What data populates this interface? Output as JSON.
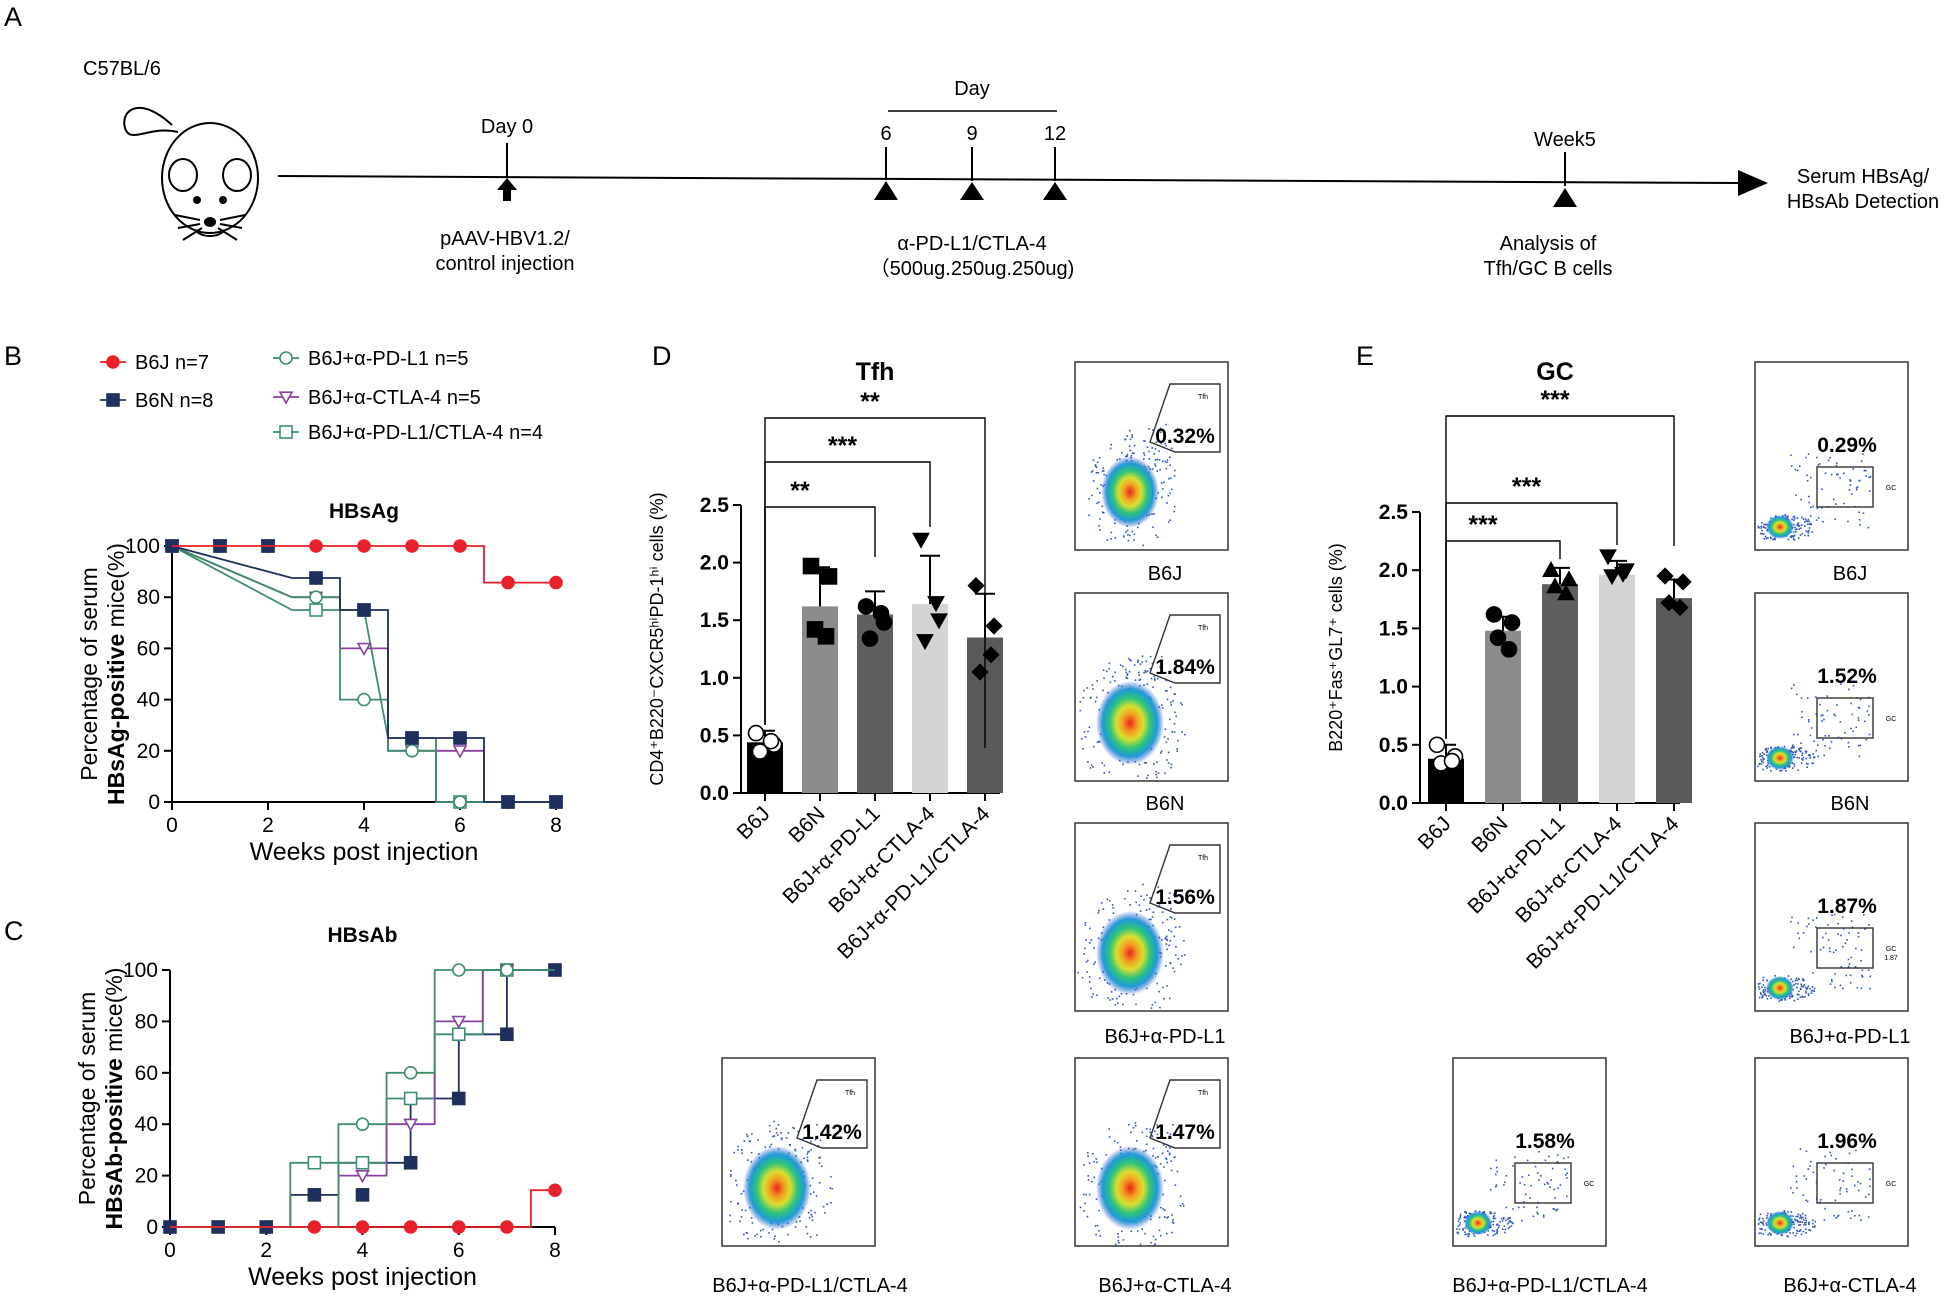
{
  "panels": {
    "A": "A",
    "B": "B",
    "C": "C",
    "D": "D",
    "E": "E"
  },
  "timeline": {
    "strain": "C57BL/6",
    "day0": "Day 0",
    "injection": [
      "pAAV-HBV1.2/",
      "control injection"
    ],
    "day_label": "Day",
    "days": [
      "6",
      "9",
      "12"
    ],
    "treatment": [
      "α-PD-L1/CTLA-4",
      "（500ug.250ug.250ug)"
    ],
    "week5": "Week5",
    "analysis": [
      "Analysis of",
      "Tfh/GC B cells"
    ],
    "endpoint": [
      "Serum HBsAg/",
      "HBsAb Detection"
    ]
  },
  "legend": [
    {
      "label": "B6J n=7",
      "color": "#e8212a",
      "marker": "filled-circle"
    },
    {
      "label": "B6N n=8",
      "color": "#1f2f5f",
      "marker": "filled-square"
    },
    {
      "label": "B6J+α-PD-L1 n=5",
      "color": "#3d8f6a",
      "marker": "open-circle"
    },
    {
      "label": "B6J+α-CTLA-4 n=5",
      "color": "#8b3fa0",
      "marker": "open-triangle-down"
    },
    {
      "label": "B6J+α-PD-L1/CTLA-4 n=4",
      "color": "#3d8f6a",
      "marker": "open-square"
    }
  ],
  "chart_data": [
    {
      "id": "B",
      "type": "line",
      "title": "HBsAg",
      "xlabel": "Weeks post injection",
      "ylabel_plain": "Percentage of serum",
      "ylabel_bold": "HBsAg-positive",
      "ylabel_tail": " mice(%)",
      "xlim": [
        0,
        8
      ],
      "ylim": [
        0,
        100
      ],
      "xticks": [
        0,
        2,
        4,
        6,
        8
      ],
      "yticks": [
        0,
        20,
        40,
        60,
        80,
        100
      ],
      "series": [
        {
          "name": "B6J+α-PD-L1/CTLA-4",
          "steps": [
            [
              0,
              100
            ],
            [
              2.5,
              75
            ],
            [
              4,
              75
            ],
            [
              4.5,
              25
            ],
            [
              5.5,
              25
            ],
            [
              5.5,
              0
            ],
            [
              8,
              0
            ]
          ],
          "points": [
            [
              0,
              100
            ],
            [
              1,
              100
            ],
            [
              2,
              100
            ],
            [
              3,
              75
            ],
            [
              4,
              75
            ],
            [
              5,
              25
            ],
            [
              6,
              0
            ],
            [
              7,
              0
            ],
            [
              8,
              0
            ]
          ]
        },
        {
          "name": "B6J+α-CTLA-4",
          "steps": [
            [
              0,
              100
            ],
            [
              2.5,
              80
            ],
            [
              3.5,
              80
            ],
            [
              3.5,
              60
            ],
            [
              4.5,
              60
            ],
            [
              4.5,
              20
            ],
            [
              6.5,
              20
            ],
            [
              6.5,
              0
            ],
            [
              8,
              0
            ]
          ],
          "points": [
            [
              0,
              100
            ],
            [
              1,
              100
            ],
            [
              2,
              100
            ],
            [
              3,
              80
            ],
            [
              4,
              60
            ],
            [
              5,
              20
            ],
            [
              6,
              20
            ],
            [
              7,
              0
            ],
            [
              8,
              0
            ]
          ]
        },
        {
          "name": "B6J+α-PD-L1",
          "steps": [
            [
              0,
              100
            ],
            [
              2.5,
              80
            ],
            [
              3.5,
              80
            ],
            [
              3.5,
              40
            ],
            [
              4.5,
              40
            ],
            [
              4.5,
              20
            ],
            [
              5.5,
              20
            ],
            [
              5.5,
              0
            ],
            [
              8,
              0
            ]
          ],
          "points": [
            [
              0,
              100
            ],
            [
              1,
              100
            ],
            [
              2,
              100
            ],
            [
              3,
              80
            ],
            [
              4,
              40
            ],
            [
              5,
              20
            ],
            [
              6,
              0
            ],
            [
              7,
              0
            ],
            [
              8,
              0
            ]
          ]
        },
        {
          "name": "B6N",
          "steps": [
            [
              0,
              100
            ],
            [
              2.5,
              87.5
            ],
            [
              3.5,
              87.5
            ],
            [
              3.5,
              75
            ],
            [
              4.5,
              75
            ],
            [
              4.5,
              25
            ],
            [
              6.5,
              25
            ],
            [
              6.5,
              0
            ],
            [
              8,
              0
            ]
          ],
          "points": [
            [
              0,
              100
            ],
            [
              1,
              100
            ],
            [
              2,
              100
            ],
            [
              3,
              87.5
            ],
            [
              4,
              75
            ],
            [
              5,
              25
            ],
            [
              6,
              25
            ],
            [
              7,
              0
            ],
            [
              8,
              0
            ]
          ]
        },
        {
          "name": "B6J",
          "steps": [
            [
              0,
              100
            ],
            [
              6.5,
              100
            ],
            [
              6.5,
              85.7
            ],
            [
              8,
              85.7
            ]
          ],
          "points": [
            [
              3,
              100
            ],
            [
              4,
              100
            ],
            [
              5,
              100
            ],
            [
              6,
              100
            ],
            [
              7,
              85.7
            ],
            [
              8,
              85.7
            ]
          ]
        }
      ]
    },
    {
      "id": "C",
      "type": "line",
      "title": "HBsAb",
      "xlabel": "Weeks post injection",
      "ylabel_plain": "Percentage of serum",
      "ylabel_bold": "HBsAb-positive",
      "ylabel_tail": " mice(%)",
      "xlim": [
        0,
        8
      ],
      "ylim": [
        0,
        100
      ],
      "xticks": [
        0,
        2,
        4,
        6,
        8
      ],
      "yticks": [
        0,
        20,
        40,
        60,
        80,
        100
      ],
      "series": [
        {
          "name": "B6N",
          "steps": [
            [
              0,
              0
            ],
            [
              2.5,
              0
            ],
            [
              2.5,
              12.5
            ],
            [
              3.5,
              12.5
            ],
            [
              3.5,
              25
            ],
            [
              5,
              25
            ],
            [
              5,
              50
            ],
            [
              6,
              50
            ],
            [
              6,
              75
            ],
            [
              7,
              75
            ],
            [
              7,
              100
            ],
            [
              8,
              100
            ]
          ],
          "points": [
            [
              0,
              0
            ],
            [
              1,
              0
            ],
            [
              2,
              0
            ],
            [
              3,
              12.5
            ],
            [
              4,
              12.5
            ],
            [
              5,
              25
            ],
            [
              6,
              50
            ],
            [
              7,
              75
            ],
            [
              8,
              100
            ]
          ]
        },
        {
          "name": "B6J+α-PD-L1/CTLA-4",
          "steps": [
            [
              0,
              0
            ],
            [
              2.5,
              0
            ],
            [
              2.5,
              25
            ],
            [
              3.5,
              25
            ],
            [
              3.5,
              25
            ],
            [
              4.5,
              25
            ],
            [
              4.5,
              50
            ],
            [
              5.5,
              50
            ],
            [
              5.5,
              75
            ],
            [
              6.5,
              75
            ],
            [
              6.5,
              100
            ],
            [
              8,
              100
            ]
          ],
          "points": [
            [
              3,
              25
            ],
            [
              4,
              25
            ],
            [
              5,
              50
            ],
            [
              6,
              75
            ],
            [
              7,
              100
            ]
          ]
        },
        {
          "name": "B6J+α-CTLA-4",
          "steps": [
            [
              0,
              0
            ],
            [
              3.5,
              0
            ],
            [
              3.5,
              20
            ],
            [
              4.5,
              20
            ],
            [
              4.5,
              40
            ],
            [
              5.5,
              40
            ],
            [
              5.5,
              80
            ],
            [
              6.5,
              80
            ],
            [
              6.5,
              100
            ],
            [
              7,
              100
            ]
          ],
          "points": [
            [
              4,
              20
            ],
            [
              5,
              40
            ],
            [
              6,
              80
            ],
            [
              7,
              100
            ]
          ]
        },
        {
          "name": "B6J+α-PD-L1",
          "steps": [
            [
              0,
              0
            ],
            [
              3.5,
              0
            ],
            [
              3.5,
              40
            ],
            [
              4.5,
              40
            ],
            [
              4.5,
              60
            ],
            [
              5.5,
              60
            ],
            [
              5.5,
              100
            ],
            [
              7,
              100
            ]
          ],
          "points": [
            [
              4,
              40
            ],
            [
              5,
              60
            ],
            [
              6,
              100
            ],
            [
              7,
              100
            ]
          ]
        },
        {
          "name": "B6J",
          "steps": [
            [
              0,
              0
            ],
            [
              7.5,
              0
            ],
            [
              7.5,
              14.3
            ],
            [
              8,
              14.3
            ]
          ],
          "points": [
            [
              3,
              0
            ],
            [
              4,
              0
            ],
            [
              5,
              0
            ],
            [
              6,
              0
            ],
            [
              7,
              0
            ],
            [
              8,
              14.3
            ]
          ]
        }
      ]
    },
    {
      "id": "D",
      "type": "bar",
      "title": "Tfh",
      "ylabel": "CD4⁺B220⁻CXCR5ʰⁱPD-1ʰⁱ cells (%)",
      "categories": [
        "B6J",
        "B6N",
        "B6J+α-PD-L1",
        "B6J+α-CTLA-4",
        "B6J+α-PD-L1/CTLA-4"
      ],
      "values": [
        0.44,
        1.62,
        1.55,
        1.64,
        1.35
      ],
      "errors": [
        0.1,
        0.34,
        0.2,
        0.42,
        0.38
      ],
      "ylim": [
        0,
        2.5
      ],
      "yticks": [
        "0.0",
        "0.5",
        "1.0",
        "1.5",
        "2.0",
        "2.5"
      ],
      "bar_colors": [
        "#000000",
        "#8c8c8c",
        "#5f5f5f",
        "#d4d4d4",
        "#5a5a5a"
      ],
      "markers": [
        "open-circle",
        "filled-square",
        "filled-circle",
        "filled-triangle-down",
        "filled-diamond"
      ],
      "points": [
        [
          0.52,
          0.42,
          0.36,
          0.45
        ],
        [
          1.97,
          1.88,
          1.42,
          1.36
        ],
        [
          1.62,
          1.48,
          1.34,
          1.56
        ],
        [
          2.2,
          1.5,
          1.32,
          1.65
        ],
        [
          1.8,
          1.45,
          1.05,
          1.2
        ]
      ],
      "significance": [
        {
          "label": "**",
          "from": 0,
          "to": 2
        },
        {
          "label": "***",
          "from": 0,
          "to": 3
        },
        {
          "label": "**",
          "from": 0,
          "to": 4
        }
      ]
    },
    {
      "id": "E",
      "type": "bar",
      "title": "GC",
      "ylabel": "B220⁺Fas⁺GL7⁺ cells (%)",
      "categories": [
        "B6J",
        "B6N",
        "B6J+α-PD-L1",
        "B6J+α-CTLA-4",
        "B6J+α-PD-L1/CTLA-4"
      ],
      "values": [
        0.38,
        1.48,
        1.88,
        1.96,
        1.76
      ],
      "errors": [
        0.12,
        0.12,
        0.14,
        0.12,
        0.16
      ],
      "ylim": [
        0,
        2.5
      ],
      "yticks": [
        "0.0",
        "0.5",
        "1.0",
        "1.5",
        "2.0",
        "2.5"
      ],
      "bar_colors": [
        "#000000",
        "#8c8c8c",
        "#5f5f5f",
        "#d4d4d4",
        "#5a5a5a"
      ],
      "markers": [
        "open-circle",
        "filled-circle",
        "filled-triangle-up",
        "filled-triangle-down",
        "filled-diamond"
      ],
      "points": [
        [
          0.5,
          0.4,
          0.34,
          0.36
        ],
        [
          1.62,
          1.55,
          1.42,
          1.32
        ],
        [
          2.0,
          1.92,
          1.86,
          1.8
        ],
        [
          2.12,
          2.0,
          1.95,
          1.97
        ],
        [
          1.95,
          1.9,
          1.72,
          1.68
        ]
      ],
      "significance": [
        {
          "label": "***",
          "from": 0,
          "to": 2
        },
        {
          "label": "***",
          "from": 0,
          "to": 3
        },
        {
          "label": "***",
          "from": 0,
          "to": 4
        }
      ]
    }
  ],
  "flow": {
    "tfh_gate": "Tfh",
    "gc_gate": "GC",
    "gc_gate_value": "1.87",
    "tfh": [
      {
        "pct": "0.32%",
        "caption": "B6J"
      },
      {
        "pct": "1.84%",
        "caption": "B6N"
      },
      {
        "pct": "1.56%",
        "caption": "B6J+α-PD-L1"
      },
      {
        "pct": "1.47%",
        "caption": "B6J+α-CTLA-4"
      },
      {
        "pct": "1.42%",
        "caption": "B6J+α-PD-L1/CTLA-4"
      }
    ],
    "gc": [
      {
        "pct": "0.29%",
        "caption": "B6J"
      },
      {
        "pct": "1.52%",
        "caption": "B6N"
      },
      {
        "pct": "1.87%",
        "caption": "B6J+α-PD-L1"
      },
      {
        "pct": "1.96%",
        "caption": "B6J+α-CTLA-4"
      },
      {
        "pct": "1.58%",
        "caption": "B6J+α-PD-L1/CTLA-4"
      }
    ]
  }
}
